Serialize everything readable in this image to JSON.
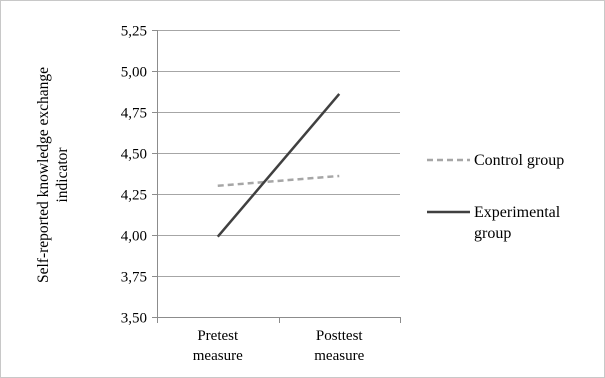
{
  "chart_data": {
    "type": "line",
    "categories": [
      [
        "Pretest",
        "measure"
      ],
      [
        "Posttest",
        "measure"
      ]
    ],
    "y_ticks": [
      "3,50",
      "3,75",
      "4,00",
      "4,25",
      "4,50",
      "4,75",
      "5,00",
      "5,25"
    ],
    "y_tick_values": [
      3.5,
      3.75,
      4.0,
      4.25,
      4.5,
      4.75,
      5.0,
      5.25
    ],
    "ylim": [
      3.5,
      5.25
    ],
    "ylabel": [
      "Self-reported knowledge exchange",
      "indicator"
    ],
    "xlabel": "",
    "title": "",
    "grid": "horizontal",
    "legend_position": "right",
    "series": [
      {
        "name": [
          "Control group"
        ],
        "values": [
          4.3,
          4.36
        ],
        "color": "#a6a6a6",
        "style": "dashed"
      },
      {
        "name": [
          "Experimental",
          "group"
        ],
        "values": [
          3.99,
          4.86
        ],
        "color": "#404040",
        "style": "solid"
      }
    ],
    "gridline_color": "#a6a6a6"
  }
}
